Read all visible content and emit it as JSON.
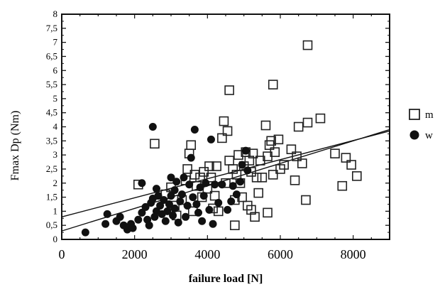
{
  "chart_data": {
    "type": "scatter",
    "title": "",
    "xlabel": "failure load [N]",
    "ylabel": "Fmax Dp (Nm)",
    "xlim": [
      0,
      9000
    ],
    "ylim": [
      0,
      8
    ],
    "xticks": [
      "0",
      "2000",
      "4000",
      "6000",
      "8000"
    ],
    "yticks": [
      "0",
      "0,5",
      "1",
      "1,5",
      "2",
      "2,5",
      "3",
      "3,5",
      "4",
      "4,5",
      "5",
      "5,5",
      "6",
      "6,5",
      "7",
      "7,5",
      "8"
    ],
    "legend_position": "right",
    "grid": false,
    "series": [
      {
        "name": "m",
        "marker": "open-square",
        "color": "#222222",
        "points": [
          [
            2100,
            1.95
          ],
          [
            2550,
            3.4
          ],
          [
            2850,
            1.6
          ],
          [
            3000,
            1.85
          ],
          [
            3100,
            1.2
          ],
          [
            3150,
            0.85
          ],
          [
            3300,
            1.4
          ],
          [
            3400,
            2.1
          ],
          [
            3450,
            2.5
          ],
          [
            3500,
            3.05
          ],
          [
            3550,
            3.35
          ],
          [
            3600,
            1.0
          ],
          [
            3650,
            2.3
          ],
          [
            3700,
            1.9
          ],
          [
            3800,
            2.2
          ],
          [
            3850,
            1.5
          ],
          [
            3900,
            2.4
          ],
          [
            4000,
            1.8
          ],
          [
            4050,
            2.6
          ],
          [
            4100,
            2.2
          ],
          [
            4150,
            1.1
          ],
          [
            4200,
            1.55
          ],
          [
            4250,
            2.6
          ],
          [
            4300,
            1.0
          ],
          [
            4400,
            3.6
          ],
          [
            4450,
            4.2
          ],
          [
            4500,
            2.0
          ],
          [
            4550,
            3.85
          ],
          [
            4600,
            5.3
          ],
          [
            4600,
            2.8
          ],
          [
            4700,
            2.5
          ],
          [
            4750,
            1.4
          ],
          [
            4750,
            0.5
          ],
          [
            4800,
            2.3
          ],
          [
            4850,
            3.0
          ],
          [
            4900,
            2.0
          ],
          [
            4950,
            1.5
          ],
          [
            5000,
            2.6
          ],
          [
            5050,
            3.1
          ],
          [
            5100,
            1.2
          ],
          [
            5150,
            2.8
          ],
          [
            5200,
            2.4
          ],
          [
            5200,
            1.05
          ],
          [
            5250,
            3.05
          ],
          [
            5300,
            0.8
          ],
          [
            5350,
            2.2
          ],
          [
            5400,
            1.65
          ],
          [
            5450,
            2.8
          ],
          [
            5500,
            2.2
          ],
          [
            5600,
            4.05
          ],
          [
            5650,
            0.95
          ],
          [
            5650,
            2.95
          ],
          [
            5700,
            3.35
          ],
          [
            5750,
            3.5
          ],
          [
            5800,
            2.3
          ],
          [
            5800,
            5.5
          ],
          [
            5850,
            3.1
          ],
          [
            5950,
            3.55
          ],
          [
            6000,
            2.5
          ],
          [
            6100,
            2.65
          ],
          [
            6300,
            3.2
          ],
          [
            6400,
            2.1
          ],
          [
            6450,
            2.95
          ],
          [
            6500,
            4.0
          ],
          [
            6600,
            2.7
          ],
          [
            6700,
            1.4
          ],
          [
            6750,
            6.9
          ],
          [
            6750,
            4.15
          ],
          [
            7100,
            4.3
          ],
          [
            7500,
            3.05
          ],
          [
            7700,
            1.9
          ],
          [
            7800,
            2.9
          ],
          [
            7950,
            2.65
          ],
          [
            8100,
            2.25
          ]
        ]
      },
      {
        "name": "w",
        "marker": "filled-circle",
        "color": "#111111",
        "points": [
          [
            650,
            0.25
          ],
          [
            1200,
            0.55
          ],
          [
            1250,
            0.9
          ],
          [
            1500,
            0.65
          ],
          [
            1600,
            0.8
          ],
          [
            1700,
            0.5
          ],
          [
            1800,
            0.35
          ],
          [
            1900,
            0.55
          ],
          [
            1950,
            0.4
          ],
          [
            2100,
            0.7
          ],
          [
            2200,
            0.95
          ],
          [
            2200,
            2.0
          ],
          [
            2300,
            1.15
          ],
          [
            2350,
            0.7
          ],
          [
            2400,
            0.5
          ],
          [
            2450,
            1.3
          ],
          [
            2500,
            1.45
          ],
          [
            2500,
            4.0
          ],
          [
            2550,
            0.8
          ],
          [
            2600,
            1.0
          ],
          [
            2600,
            1.8
          ],
          [
            2650,
            1.55
          ],
          [
            2700,
            1.2
          ],
          [
            2750,
            0.9
          ],
          [
            2800,
            1.4
          ],
          [
            2850,
            0.65
          ],
          [
            2900,
            1.0
          ],
          [
            2950,
            1.25
          ],
          [
            3000,
            1.55
          ],
          [
            3000,
            2.2
          ],
          [
            3050,
            0.85
          ],
          [
            3100,
            1.1
          ],
          [
            3100,
            1.75
          ],
          [
            3150,
            2.05
          ],
          [
            3200,
            0.6
          ],
          [
            3250,
            1.35
          ],
          [
            3300,
            1.6
          ],
          [
            3350,
            2.2
          ],
          [
            3400,
            0.8
          ],
          [
            3450,
            1.2
          ],
          [
            3500,
            1.95
          ],
          [
            3550,
            2.9
          ],
          [
            3600,
            1.5
          ],
          [
            3650,
            3.9
          ],
          [
            3700,
            1.25
          ],
          [
            3750,
            0.95
          ],
          [
            3800,
            1.85
          ],
          [
            3850,
            0.65
          ],
          [
            3900,
            1.55
          ],
          [
            3950,
            2.0
          ],
          [
            4050,
            1.05
          ],
          [
            4100,
            3.55
          ],
          [
            4150,
            0.55
          ],
          [
            4200,
            1.95
          ],
          [
            4300,
            1.3
          ],
          [
            4400,
            1.95
          ],
          [
            4550,
            1.05
          ],
          [
            4650,
            1.35
          ],
          [
            4700,
            1.9
          ],
          [
            4800,
            1.6
          ],
          [
            4900,
            2.05
          ],
          [
            4950,
            2.65
          ],
          [
            5050,
            3.15
          ],
          [
            5100,
            2.45
          ]
        ]
      }
    ],
    "trendlines": [
      {
        "x": [
          0,
          9000
        ],
        "y": [
          0.8,
          3.85
        ]
      },
      {
        "x": [
          0,
          9000
        ],
        "y": [
          0.3,
          3.9
        ]
      }
    ]
  }
}
